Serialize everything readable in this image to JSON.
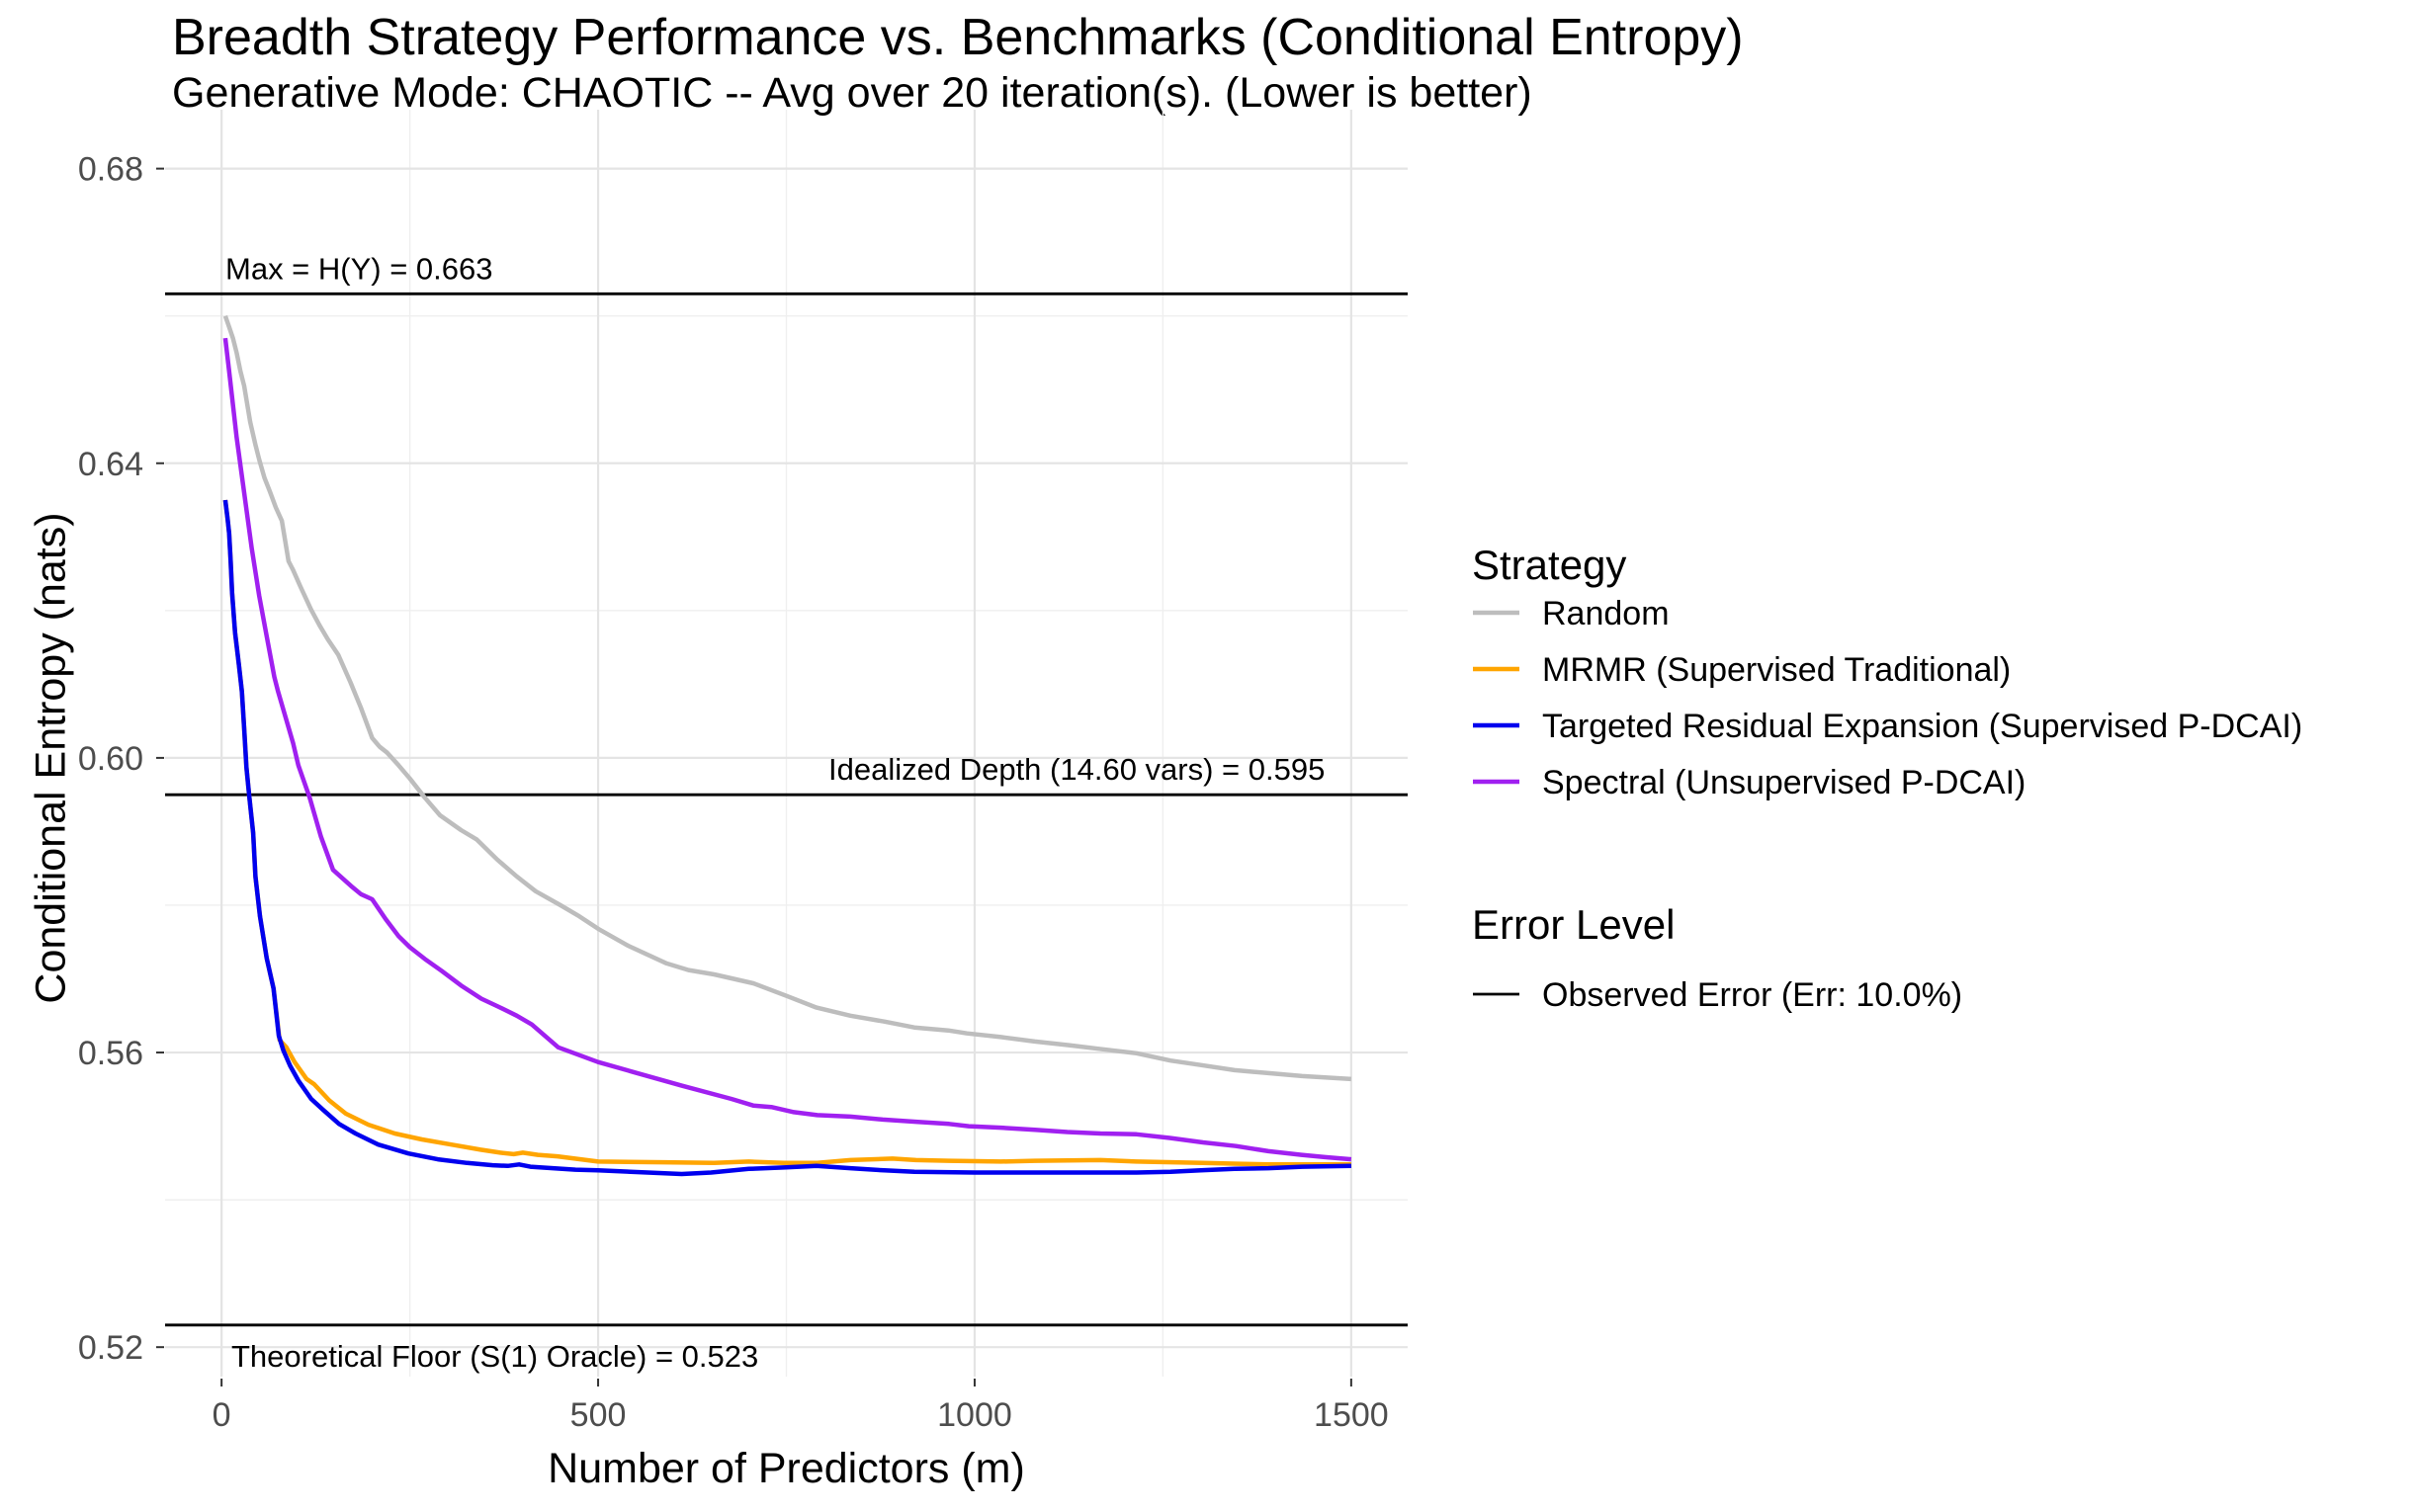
{
  "title": "Breadth Strategy Performance vs. Benchmarks (Conditional Entropy)",
  "subtitle": "Generative Mode: CHAOTIC -- Avg over 20 iteration(s). (Lower is better)",
  "legend": {
    "strategy_title": "Strategy",
    "strategies": [
      {
        "label": "Random",
        "color": "#BDBDBD"
      },
      {
        "label": "MRMR (Supervised Traditional)",
        "color": "#FFA500"
      },
      {
        "label": "Targeted Residual Expansion (Supervised P-DCAI)",
        "color": "#0000EE"
      },
      {
        "label": "Spectral (Unsupervised P-DCAI)",
        "color": "#A020F0"
      }
    ],
    "error_title": "Error Level",
    "error_entries": [
      {
        "label": "Observed Error (Err: 10.0%)",
        "color": "#000000"
      }
    ]
  },
  "chart_data": {
    "type": "line",
    "title": "Breadth Strategy Performance vs. Benchmarks (Conditional Entropy)",
    "subtitle": "Generative Mode: CHAOTIC -- Avg over 20 iteration(s). (Lower is better)",
    "xlabel": "Number of Predictors (m)",
    "ylabel": "Conditional Entropy (nats)",
    "xlim": [
      -75,
      1575
    ],
    "ylim": [
      0.516,
      0.688
    ],
    "grid": true,
    "legend_position": "right",
    "x_tick_values": [
      0,
      500,
      1000,
      1500
    ],
    "x_tick_labels": [
      "0",
      "500",
      "1000",
      "1500"
    ],
    "x_minor_ticks": [
      250,
      750,
      1250
    ],
    "y_tick_values": [
      0.52,
      0.56,
      0.6,
      0.64,
      0.68
    ],
    "y_tick_labels": [
      "0.52",
      "0.56",
      "0.60",
      "0.64",
      "0.68"
    ],
    "y_minor_ticks": [
      0.54,
      0.58,
      0.62,
      0.66
    ],
    "reference_lines": [
      {
        "label": "Max = H(Y) = 0.663",
        "value": 0.663,
        "color": "#000000"
      },
      {
        "label": "Idealized Depth (14.60 vars) = 0.595",
        "value": 0.595,
        "color": "#000000"
      },
      {
        "label": "Theoretical Floor (S(1) Oracle) = 0.523",
        "value": 0.523,
        "color": "#000000"
      }
    ],
    "series": [
      {
        "name": "Random",
        "color": "#BDBDBD",
        "points": [
          [
            5,
            0.66
          ],
          [
            10,
            0.6585
          ],
          [
            15,
            0.657
          ],
          [
            20,
            0.655
          ],
          [
            25,
            0.6525
          ],
          [
            30,
            0.6505
          ],
          [
            38,
            0.6456
          ],
          [
            45,
            0.6425
          ],
          [
            50,
            0.6405
          ],
          [
            57,
            0.638
          ],
          [
            64,
            0.6362
          ],
          [
            72,
            0.634
          ],
          [
            80,
            0.6322
          ],
          [
            89,
            0.6267
          ],
          [
            95,
            0.6255
          ],
          [
            105,
            0.6232
          ],
          [
            119,
            0.6201
          ],
          [
            130,
            0.618
          ],
          [
            141,
            0.6161
          ],
          [
            155,
            0.614
          ],
          [
            171,
            0.6103
          ],
          [
            185,
            0.6068
          ],
          [
            200,
            0.6027
          ],
          [
            210,
            0.6015
          ],
          [
            220,
            0.6007
          ],
          [
            235,
            0.599
          ],
          [
            250,
            0.5972
          ],
          [
            270,
            0.5946
          ],
          [
            290,
            0.5922
          ],
          [
            318,
            0.5902
          ],
          [
            339,
            0.5889
          ],
          [
            366,
            0.5862
          ],
          [
            392,
            0.5839
          ],
          [
            417,
            0.5819
          ],
          [
            450,
            0.58
          ],
          [
            475,
            0.5785
          ],
          [
            500,
            0.5768
          ],
          [
            540,
            0.5745
          ],
          [
            591,
            0.5721
          ],
          [
            620,
            0.5712
          ],
          [
            654,
            0.5706
          ],
          [
            706,
            0.5694
          ],
          [
            750,
            0.5677
          ],
          [
            790,
            0.5661
          ],
          [
            835,
            0.565
          ],
          [
            880,
            0.5642
          ],
          [
            920,
            0.5634
          ],
          [
            965,
            0.563
          ],
          [
            990,
            0.5626
          ],
          [
            1035,
            0.5621
          ],
          [
            1080,
            0.5615
          ],
          [
            1125,
            0.561
          ],
          [
            1165,
            0.5605
          ],
          [
            1215,
            0.5599
          ],
          [
            1260,
            0.5589
          ],
          [
            1300,
            0.5583
          ],
          [
            1345,
            0.5576
          ],
          [
            1390,
            0.5572
          ],
          [
            1435,
            0.5568
          ],
          [
            1500,
            0.5564
          ]
        ]
      },
      {
        "name": "MRMR (Supervised Traditional)",
        "color": "#FFA500",
        "points": [
          [
            5,
            0.635
          ],
          [
            8,
            0.6325
          ],
          [
            10,
            0.6305
          ],
          [
            12,
            0.6268
          ],
          [
            14,
            0.6224
          ],
          [
            18,
            0.617
          ],
          [
            23,
            0.6126
          ],
          [
            27,
            0.609
          ],
          [
            30,
            0.604
          ],
          [
            33,
            0.5987
          ],
          [
            37,
            0.5946
          ],
          [
            42,
            0.5898
          ],
          [
            45,
            0.5839
          ],
          [
            51,
            0.5785
          ],
          [
            60,
            0.5728
          ],
          [
            69,
            0.5687
          ],
          [
            77,
            0.5617
          ],
          [
            86,
            0.5607
          ],
          [
            97,
            0.5587
          ],
          [
            113,
            0.5564
          ],
          [
            123,
            0.5557
          ],
          [
            143,
            0.5535
          ],
          [
            165,
            0.5517
          ],
          [
            195,
            0.5502
          ],
          [
            230,
            0.549
          ],
          [
            266,
            0.5482
          ],
          [
            305,
            0.5475
          ],
          [
            344,
            0.5468
          ],
          [
            370,
            0.5464
          ],
          [
            388,
            0.5462
          ],
          [
            400,
            0.5464
          ],
          [
            420,
            0.5461
          ],
          [
            446,
            0.5459
          ],
          [
            500,
            0.5452
          ],
          [
            588,
            0.5451
          ],
          [
            654,
            0.545
          ],
          [
            700,
            0.5452
          ],
          [
            747,
            0.545
          ],
          [
            791,
            0.545
          ],
          [
            835,
            0.5454
          ],
          [
            891,
            0.5456
          ],
          [
            922,
            0.5454
          ],
          [
            966,
            0.5453
          ],
          [
            1035,
            0.5452
          ],
          [
            1080,
            0.5453
          ],
          [
            1167,
            0.5454
          ],
          [
            1215,
            0.5452
          ],
          [
            1303,
            0.545
          ],
          [
            1350,
            0.5449
          ],
          [
            1390,
            0.5448
          ],
          [
            1500,
            0.5448
          ]
        ]
      },
      {
        "name": "Targeted Residual Expansion (Supervised P-DCAI)",
        "color": "#0000EE",
        "points": [
          [
            5,
            0.635
          ],
          [
            8,
            0.6325
          ],
          [
            10,
            0.6305
          ],
          [
            12,
            0.6268
          ],
          [
            14,
            0.6224
          ],
          [
            18,
            0.617
          ],
          [
            23,
            0.6126
          ],
          [
            27,
            0.609
          ],
          [
            30,
            0.604
          ],
          [
            33,
            0.5987
          ],
          [
            37,
            0.5946
          ],
          [
            42,
            0.5898
          ],
          [
            45,
            0.5839
          ],
          [
            51,
            0.5785
          ],
          [
            60,
            0.5728
          ],
          [
            69,
            0.5687
          ],
          [
            76,
            0.5623
          ],
          [
            82,
            0.5603
          ],
          [
            91,
            0.5582
          ],
          [
            102,
            0.5562
          ],
          [
            119,
            0.5537
          ],
          [
            135,
            0.5522
          ],
          [
            156,
            0.5503
          ],
          [
            178,
            0.549
          ],
          [
            208,
            0.5475
          ],
          [
            248,
            0.5463
          ],
          [
            287,
            0.5455
          ],
          [
            326,
            0.545
          ],
          [
            360,
            0.5447
          ],
          [
            380,
            0.5446
          ],
          [
            395,
            0.5448
          ],
          [
            410,
            0.5445
          ],
          [
            440,
            0.5443
          ],
          [
            470,
            0.5441
          ],
          [
            500,
            0.544
          ],
          [
            566,
            0.5437
          ],
          [
            611,
            0.5435
          ],
          [
            650,
            0.5437
          ],
          [
            700,
            0.5442
          ],
          [
            750,
            0.5444
          ],
          [
            790,
            0.5446
          ],
          [
            835,
            0.5443
          ],
          [
            880,
            0.544
          ],
          [
            920,
            0.5438
          ],
          [
            1000,
            0.5437
          ],
          [
            1100,
            0.5437
          ],
          [
            1215,
            0.5437
          ],
          [
            1260,
            0.5438
          ],
          [
            1300,
            0.544
          ],
          [
            1345,
            0.5442
          ],
          [
            1390,
            0.5443
          ],
          [
            1435,
            0.5445
          ],
          [
            1500,
            0.5446
          ]
        ]
      },
      {
        "name": "Spectral (Unsupervised P-DCAI)",
        "color": "#A020F0",
        "points": [
          [
            5,
            0.657
          ],
          [
            10,
            0.6525
          ],
          [
            20,
            0.6435
          ],
          [
            30,
            0.636
          ],
          [
            40,
            0.6285
          ],
          [
            50,
            0.622
          ],
          [
            60,
            0.6165
          ],
          [
            70,
            0.611
          ],
          [
            75,
            0.609
          ],
          [
            85,
            0.6055
          ],
          [
            95,
            0.602
          ],
          [
            102,
            0.599
          ],
          [
            117,
            0.5946
          ],
          [
            132,
            0.5893
          ],
          [
            148,
            0.5848
          ],
          [
            172,
            0.5826
          ],
          [
            185,
            0.5815
          ],
          [
            200,
            0.5808
          ],
          [
            218,
            0.5781
          ],
          [
            235,
            0.5758
          ],
          [
            250,
            0.5743
          ],
          [
            270,
            0.5727
          ],
          [
            292,
            0.5711
          ],
          [
            318,
            0.5691
          ],
          [
            345,
            0.5673
          ],
          [
            366,
            0.5663
          ],
          [
            392,
            0.565
          ],
          [
            412,
            0.5638
          ],
          [
            447,
            0.5607
          ],
          [
            500,
            0.5587
          ],
          [
            545,
            0.5574
          ],
          [
            611,
            0.5555
          ],
          [
            677,
            0.5537
          ],
          [
            706,
            0.5528
          ],
          [
            730,
            0.5526
          ],
          [
            760,
            0.5519
          ],
          [
            791,
            0.5515
          ],
          [
            835,
            0.5513
          ],
          [
            878,
            0.5509
          ],
          [
            922,
            0.5506
          ],
          [
            966,
            0.5503
          ],
          [
            992,
            0.55
          ],
          [
            1035,
            0.5498
          ],
          [
            1080,
            0.5495
          ],
          [
            1123,
            0.5492
          ],
          [
            1167,
            0.549
          ],
          [
            1215,
            0.5489
          ],
          [
            1259,
            0.5484
          ],
          [
            1303,
            0.5478
          ],
          [
            1347,
            0.5473
          ],
          [
            1390,
            0.5466
          ],
          [
            1434,
            0.5461
          ],
          [
            1465,
            0.5458
          ],
          [
            1500,
            0.5455
          ]
        ]
      }
    ]
  }
}
